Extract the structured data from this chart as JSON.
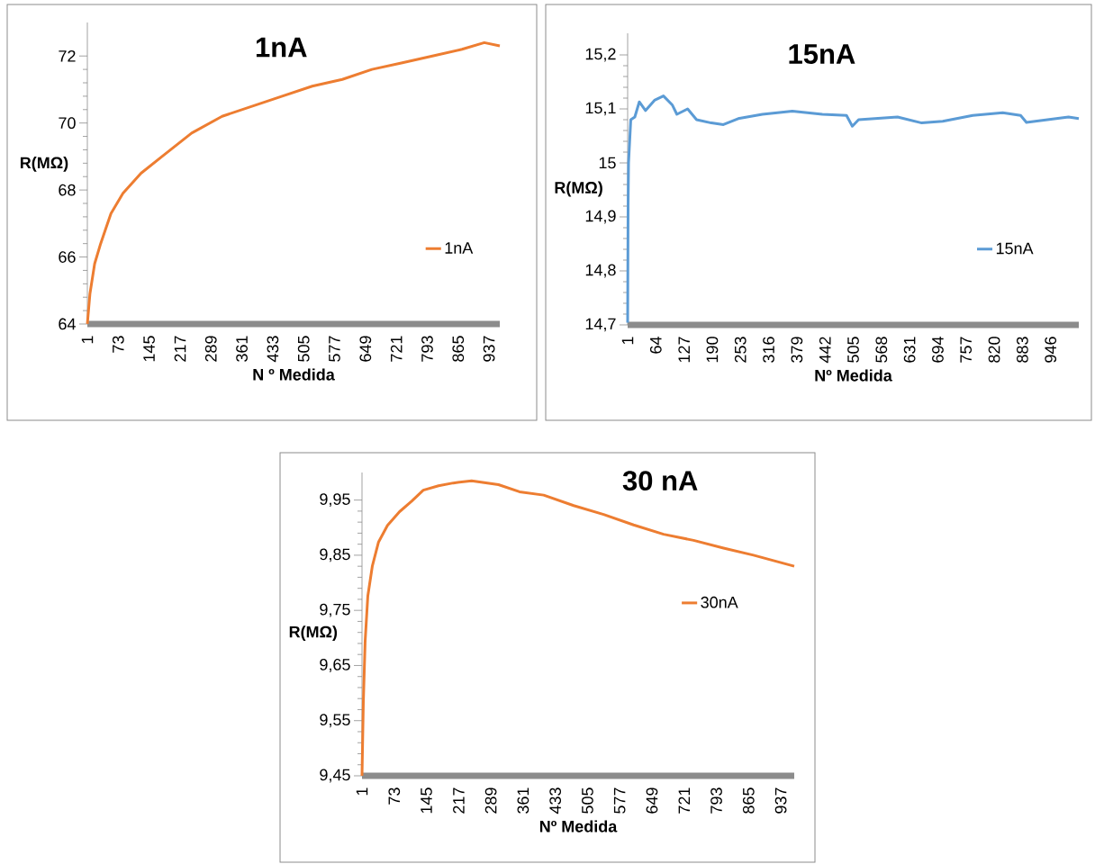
{
  "chart_data": [
    {
      "type": "line",
      "title": "1nA",
      "xlabel": "N º Medida",
      "ylabel": "R(MΩ)",
      "legend": "right",
      "x": [
        1,
        7,
        18,
        32,
        56,
        84,
        126,
        175,
        244,
        315,
        385,
        455,
        525,
        595,
        664,
        735,
        805,
        874,
        926,
        962
      ],
      "series": [
        {
          "name": "1nA",
          "color": "#ed7d31",
          "values": [
            64.0,
            64.9,
            65.8,
            66.4,
            67.3,
            67.9,
            68.5,
            69.0,
            69.7,
            70.2,
            70.5,
            70.8,
            71.1,
            71.3,
            71.6,
            71.8,
            72.0,
            72.2,
            72.4,
            72.3
          ]
        }
      ],
      "xlim": [
        1,
        962
      ],
      "xticks": [
        1,
        73,
        145,
        217,
        289,
        361,
        433,
        505,
        577,
        649,
        721,
        793,
        865,
        937
      ],
      "ylim": [
        64,
        73
      ],
      "yticks": [
        64,
        66,
        68,
        70,
        72
      ]
    },
    {
      "type": "line",
      "title": "15nA",
      "xlabel": "Nº Medida",
      "ylabel": "R(MΩ)",
      "legend": "right",
      "x": [
        1,
        2,
        3,
        8,
        17,
        27,
        41,
        61,
        81,
        101,
        111,
        135,
        155,
        188,
        215,
        248,
        302,
        369,
        436,
        490,
        503,
        517,
        604,
        658,
        705,
        772,
        839,
        879,
        892,
        939,
        986,
        1009
      ],
      "series": [
        {
          "name": "15nA",
          "color": "#5b9bd5",
          "values": [
            14.704,
            14.92,
            15.0,
            15.08,
            15.085,
            15.113,
            15.097,
            15.116,
            15.124,
            15.107,
            15.09,
            15.1,
            15.08,
            15.074,
            15.071,
            15.082,
            15.09,
            15.096,
            15.09,
            15.088,
            15.068,
            15.08,
            15.085,
            15.074,
            15.077,
            15.088,
            15.093,
            15.088,
            15.075,
            15.08,
            15.085,
            15.082
          ]
        }
      ],
      "xlim": [
        1,
        1009
      ],
      "xticks": [
        1,
        64,
        127,
        190,
        253,
        316,
        379,
        442,
        505,
        568,
        631,
        694,
        757,
        820,
        883,
        946
      ],
      "ylim": [
        14.7,
        15.24
      ],
      "yticks": [
        {
          "value": 14.7,
          "label": "14,7"
        },
        {
          "value": 14.8,
          "label": "14,8"
        },
        {
          "value": 14.9,
          "label": "14,9"
        },
        15,
        {
          "value": 15.1,
          "label": "15,1"
        },
        {
          "value": 15.2,
          "label": "15,2"
        }
      ]
    },
    {
      "type": "line",
      "title": "30 nA",
      "xlabel": "Nº Medida",
      "ylabel": "R(MΩ)",
      "legend": "right",
      "x": [
        1,
        4,
        8,
        14,
        24,
        38,
        58,
        85,
        112,
        138,
        172,
        205,
        246,
        306,
        353,
        407,
        474,
        541,
        608,
        675,
        742,
        809,
        876,
        967
      ],
      "series": [
        {
          "name": "30nA",
          "color": "#ed7d31",
          "values": [
            9.45,
            9.584,
            9.694,
            9.776,
            9.83,
            9.874,
            9.904,
            9.929,
            9.948,
            9.968,
            9.976,
            9.981,
            9.985,
            9.978,
            9.965,
            9.959,
            9.94,
            9.924,
            9.905,
            9.888,
            9.877,
            9.863,
            9.85,
            9.83
          ]
        }
      ],
      "xlim": [
        1,
        967
      ],
      "xticks": [
        1,
        73,
        145,
        217,
        289,
        361,
        433,
        505,
        577,
        649,
        721,
        793,
        865,
        937
      ],
      "ylim": [
        9.45,
        10.0
      ],
      "yticks": [
        {
          "value": 9.45,
          "label": "9,45"
        },
        {
          "value": 9.55,
          "label": "9,55"
        },
        {
          "value": 9.65,
          "label": "9,65"
        },
        {
          "value": 9.75,
          "label": "9,75"
        },
        {
          "value": 9.85,
          "label": "9,85"
        },
        {
          "value": 9.95,
          "label": "9,95"
        }
      ]
    }
  ]
}
